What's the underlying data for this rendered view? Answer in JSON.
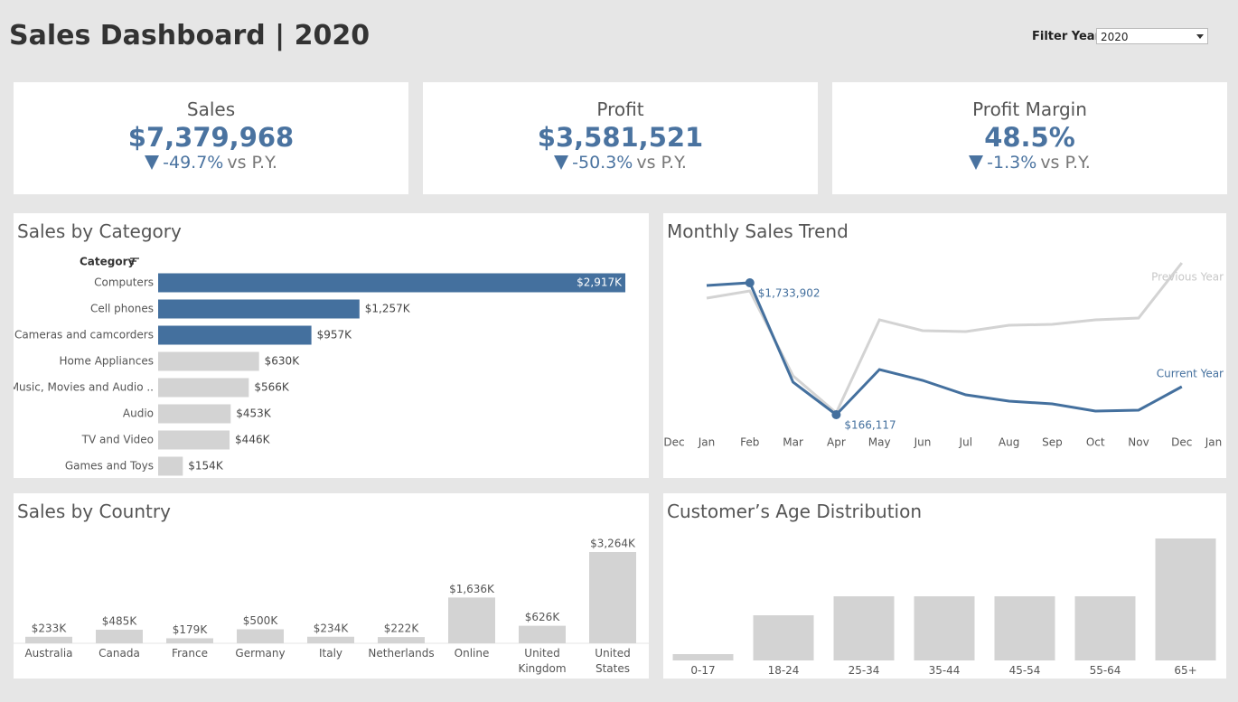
{
  "header": {
    "title": "Sales Dashboard | 2020",
    "filter_label": "Filter Year",
    "filter_value": "2020"
  },
  "kpis": [
    {
      "label": "Sales",
      "value": "$7,379,968",
      "change": "-49.7%",
      "comparison": "vs P.Y."
    },
    {
      "label": "Profit",
      "value": "$3,581,521",
      "change": "-50.3%",
      "comparison": "vs P.Y."
    },
    {
      "label": "Profit Margin",
      "value": "48.5%",
      "change": "-1.3%",
      "comparison": "vs P.Y."
    }
  ],
  "chart_data": [
    {
      "type": "hbar",
      "title": "Sales by Category",
      "y_label": "Category",
      "categories": [
        "Computers",
        "Cell phones",
        "Cameras and camcorders",
        "Home Appliances",
        "Music, Movies and Audio ..",
        "Audio",
        "TV and Video",
        "Games and Toys"
      ],
      "values": [
        2917,
        1257,
        957,
        630,
        566,
        453,
        446,
        154
      ],
      "value_labels": [
        "$2,917K",
        "$1,257K",
        "$957K",
        "$630K",
        "$566K",
        "$453K",
        "$446K",
        "$154K"
      ],
      "colors": [
        "#44709e",
        "#44709e",
        "#44709e",
        "#d3d3d3",
        "#d3d3d3",
        "#d3d3d3",
        "#d3d3d3",
        "#d3d3d3"
      ]
    },
    {
      "type": "line",
      "title": "Monthly Sales Trend",
      "categories": [
        "Dec",
        "Jan",
        "Feb",
        "Mar",
        "Apr",
        "May",
        "Jun",
        "Jul",
        "Aug",
        "Sep",
        "Oct",
        "Nov",
        "Dec",
        "Jan"
      ],
      "series": [
        {
          "name": "Previous Year",
          "color": "#d3d3d3",
          "values": [
            null,
            1551000,
            1637000,
            628000,
            188000,
            1294000,
            1165000,
            1154000,
            1229000,
            1240000,
            1294000,
            1315000,
            1970000,
            null
          ]
        },
        {
          "name": "Current Year",
          "color": "#44709e",
          "values": [
            null,
            1701000,
            1733902,
            553000,
            166117,
            703000,
            574000,
            402000,
            327000,
            295000,
            209000,
            220000,
            499000,
            null
          ],
          "value_labels": [
            null,
            null,
            "$1,733,902",
            null,
            "$166,117",
            null,
            null,
            null,
            null,
            null,
            null,
            null,
            null,
            null
          ]
        }
      ]
    },
    {
      "type": "bar",
      "title": "Sales by Country",
      "categories": [
        "Australia",
        "Canada",
        "France",
        "Germany",
        "Italy",
        "Netherlands",
        "Online",
        "United Kingdom",
        "United States"
      ],
      "values": [
        233,
        485,
        179,
        500,
        234,
        222,
        1636,
        626,
        3264
      ],
      "value_labels": [
        "$233K",
        "$485K",
        "$179K",
        "$500K",
        "$234K",
        "$222K",
        "$1,636K",
        "$626K",
        "$3,264K"
      ],
      "color": "#d3d3d3"
    },
    {
      "type": "bar",
      "title": "Customer’s Age Distribution",
      "categories": [
        "0-17",
        "18-24",
        "25-34",
        "35-44",
        "45-54",
        "55-64",
        "65+"
      ],
      "values": [
        7,
        50,
        71,
        71,
        71,
        71,
        135
      ],
      "color": "#d3d3d3"
    }
  ]
}
